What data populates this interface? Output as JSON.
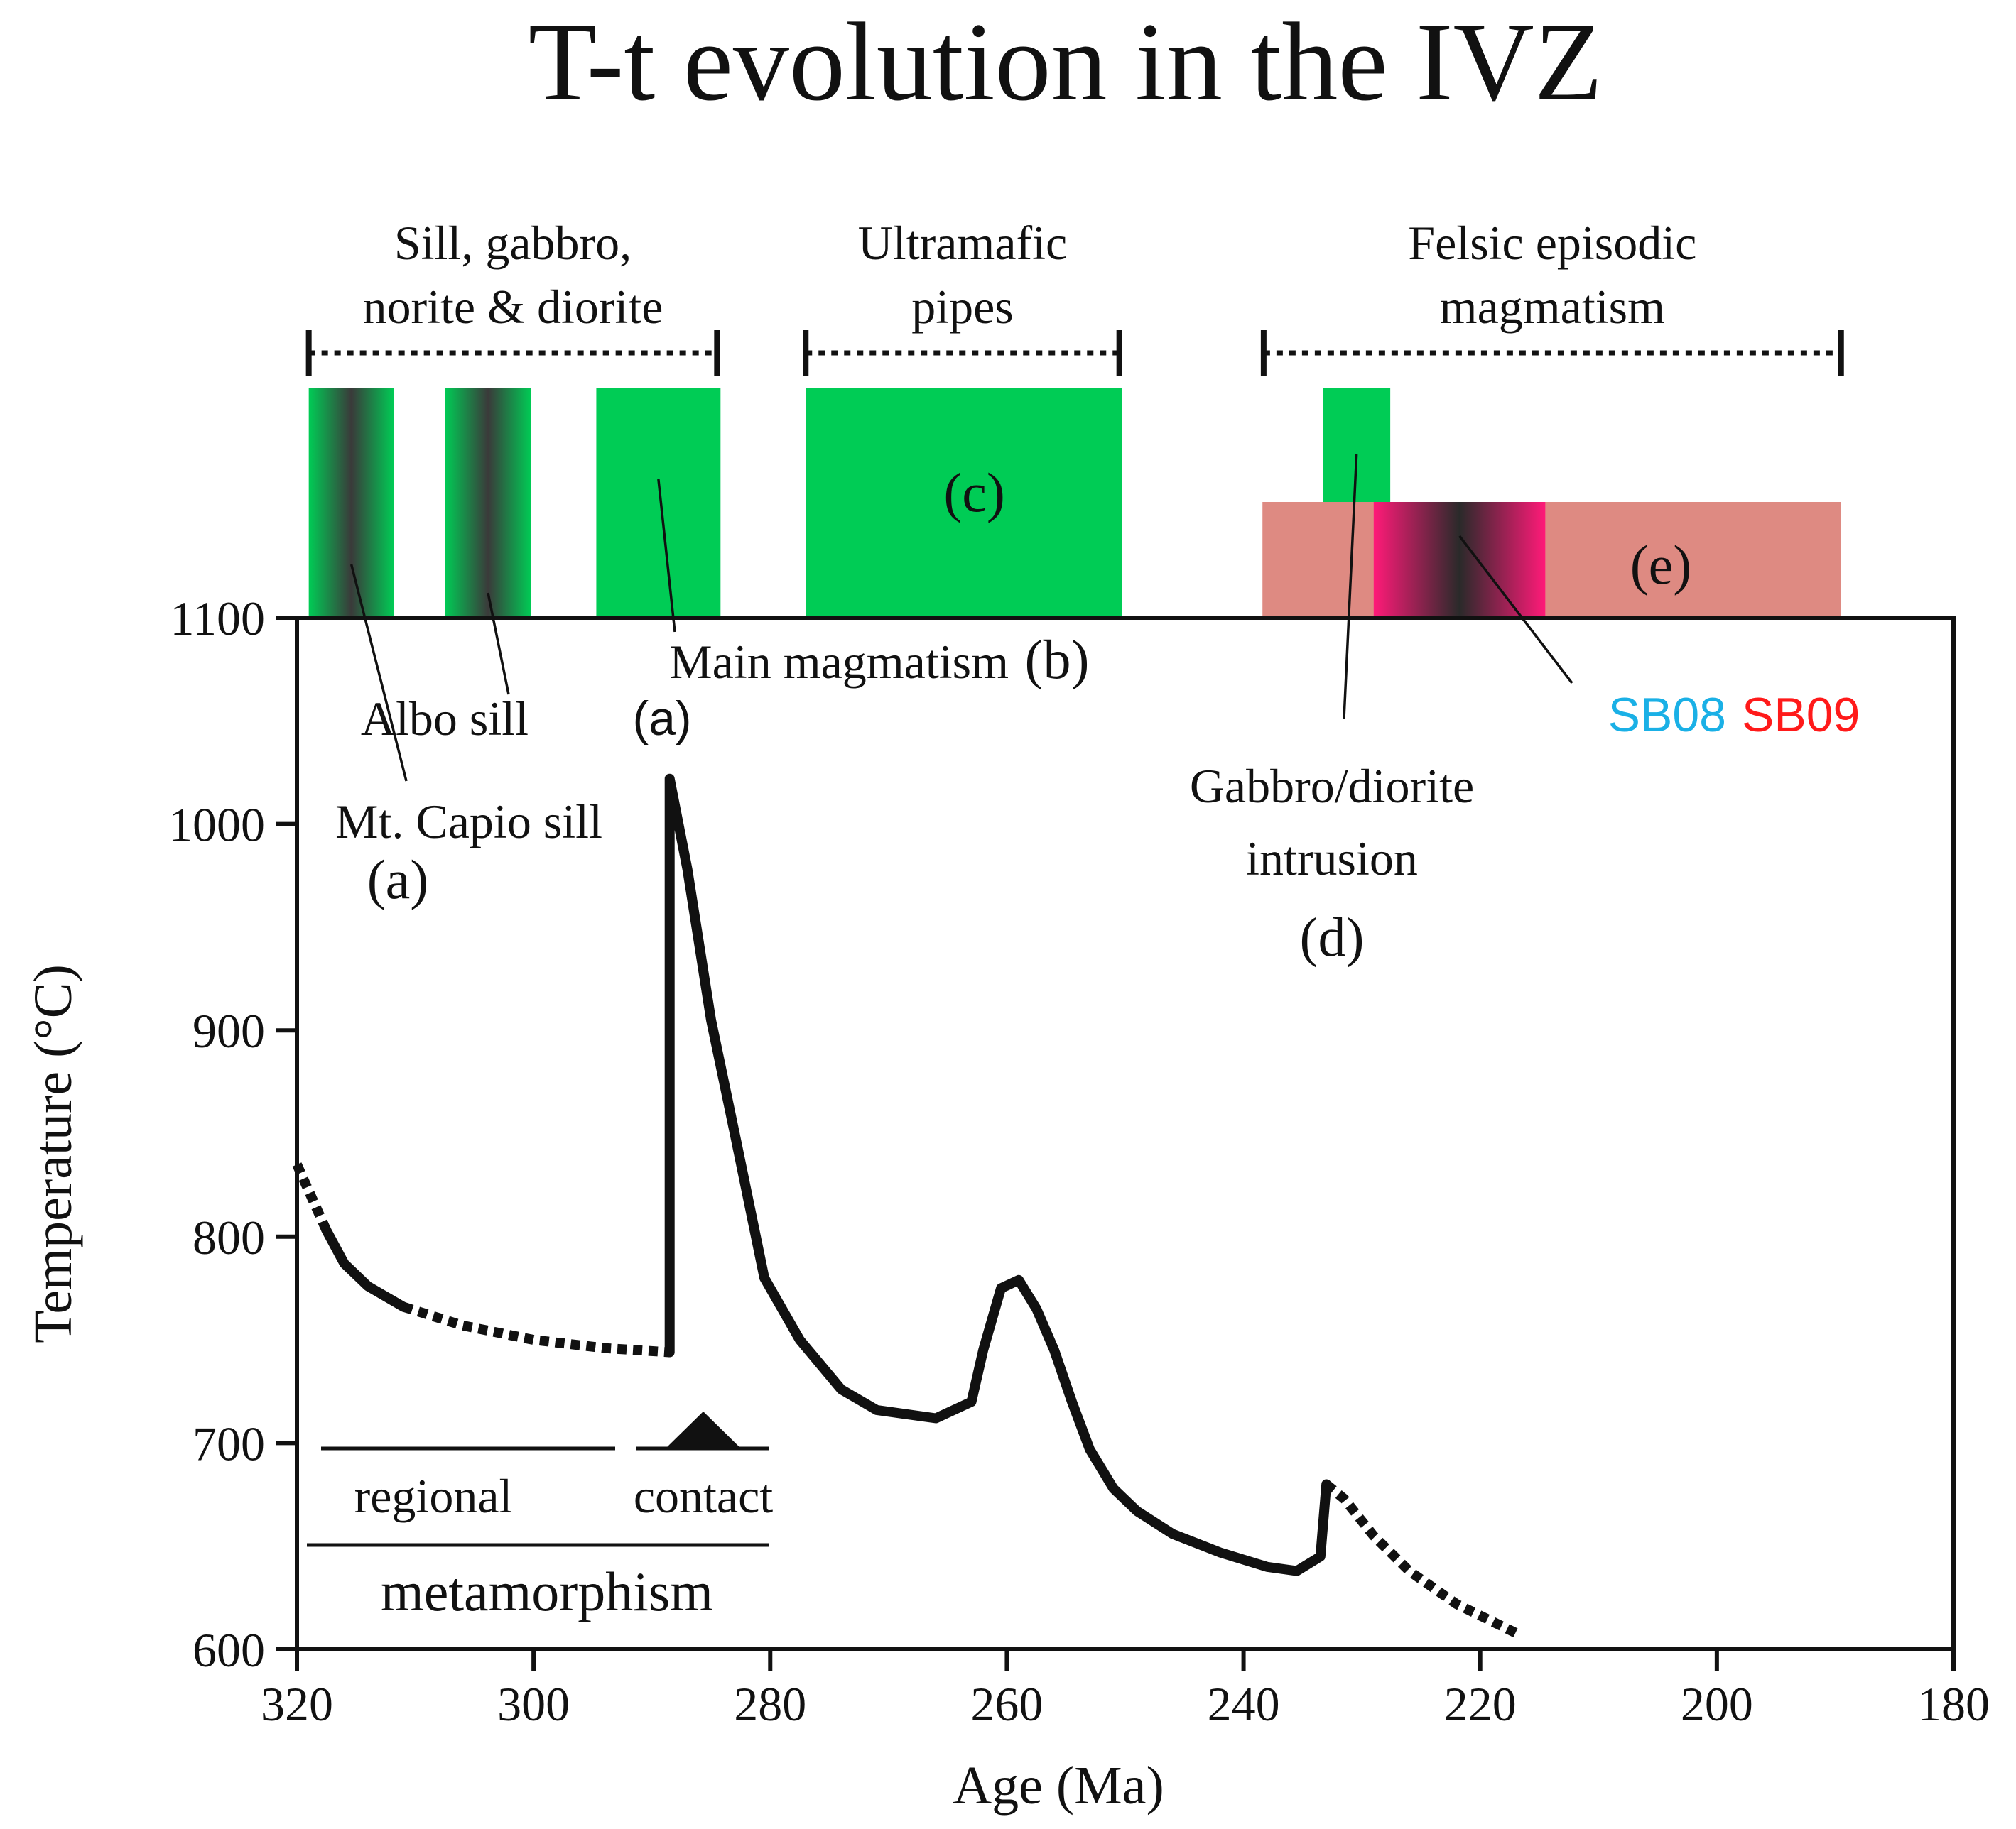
{
  "chart_data": {
    "type": "line",
    "title": "T-t evolution in the IVZ",
    "xlabel": "Age (Ma)",
    "ylabel": "Temperature (°C)",
    "xlim": [
      320,
      180
    ],
    "ylim": [
      600,
      1100
    ],
    "xticks": [
      320,
      300,
      280,
      260,
      240,
      220,
      200,
      180
    ],
    "yticks": [
      600,
      700,
      800,
      900,
      1000,
      1100
    ],
    "curve": {
      "name": "T-t path",
      "segments": [
        {
          "style": "dotted",
          "points": [
            [
              320,
              835
            ],
            [
              317.5,
              803
            ]
          ]
        },
        {
          "style": "solid",
          "points": [
            [
              317.5,
              803
            ],
            [
              316,
              787
            ],
            [
              314,
              776
            ],
            [
              311,
              766
            ]
          ]
        },
        {
          "style": "dotted",
          "points": [
            [
              311,
              766
            ],
            [
              306,
              757
            ],
            [
              300,
              750
            ],
            [
              294,
              746
            ],
            [
              288.5,
              744
            ]
          ]
        },
        {
          "style": "solid",
          "points": [
            [
              288.5,
              744
            ],
            [
              288.5,
              1022
            ],
            [
              287,
              978
            ],
            [
              285,
              905
            ],
            [
              283,
              850
            ],
            [
              280.5,
              780
            ],
            [
              277.5,
              750
            ],
            [
              274,
              726
            ],
            [
              271,
              716
            ],
            [
              266,
              712
            ],
            [
              263,
              720
            ],
            [
              262,
              745
            ],
            [
              260.5,
              775
            ],
            [
              259,
              779
            ],
            [
              257.5,
              765
            ],
            [
              256,
              745
            ],
            [
              254.5,
              720
            ],
            [
              253,
              697
            ],
            [
              251,
              678
            ],
            [
              249,
              667
            ],
            [
              246,
              656
            ],
            [
              242,
              647
            ],
            [
              238,
              640
            ],
            [
              235.5,
              638
            ],
            [
              233.5,
              645
            ],
            [
              233,
              680
            ]
          ]
        },
        {
          "style": "dotted",
          "points": [
            [
              233,
              680
            ],
            [
              231.5,
              673
            ],
            [
              229,
              655
            ],
            [
              226,
              638
            ],
            [
              222,
              622
            ],
            [
              217,
              608
            ]
          ]
        }
      ]
    },
    "magmatic_groups": [
      {
        "label_lines": [
          "Sill, gabbro,",
          "norite & diorite"
        ],
        "range": [
          319,
          284.5
        ]
      },
      {
        "label_lines": [
          "Ultramafic",
          "pipes"
        ],
        "range": [
          277,
          250.5
        ]
      },
      {
        "label_lines": [
          "Felsic episodic",
          "magmatism"
        ],
        "range": [
          238.3,
          189.5
        ]
      }
    ],
    "bars": [
      {
        "id": "mt-capio-sill",
        "range": [
          319,
          311.8
        ],
        "fill": "gradient-green"
      },
      {
        "id": "albo-sill",
        "range": [
          307.5,
          300.2
        ],
        "fill": "gradient-green"
      },
      {
        "id": "main-magmatism",
        "range": [
          294.7,
          284.2
        ],
        "fill": "green"
      },
      {
        "id": "ultramafic-pipes",
        "range": [
          277,
          250.3
        ],
        "fill": "green",
        "tag": "(c)"
      },
      {
        "id": "gabbro-diorite-intrusion",
        "range": [
          233.3,
          227.6
        ],
        "fill": "green"
      },
      {
        "id": "felsic-episodic",
        "range": [
          238.4,
          189.5
        ],
        "fill": "salmon",
        "tag": "(e)"
      },
      {
        "id": "sb08-sb09",
        "range": [
          229,
          214.5
        ],
        "fill": "gradient-pink"
      }
    ],
    "annotations": {
      "mt_capio": "Mt. Capio sill",
      "mt_capio_tag": "(a)",
      "albo": "Albo sill",
      "albo_tag": "(a)",
      "main": "Main magmatism",
      "main_tag": "(b)",
      "pipes_tag": "(c)",
      "gabbro_lines": [
        "Gabbro/diorite",
        "intrusion",
        "(d)"
      ],
      "felsic_tag": "(e)",
      "sb08": "SB08",
      "sb09": "SB09"
    },
    "metamorphism": {
      "regional": "regional",
      "contact": "contact",
      "label": "metamorphism"
    }
  },
  "colors": {
    "green": "#00cc55",
    "salmon": "#de8a82",
    "pink": "#ff1a78",
    "gray": "#333333",
    "sb08": "#1ab0e6",
    "sb09": "#ff1a1a",
    "ink": "#111111"
  }
}
